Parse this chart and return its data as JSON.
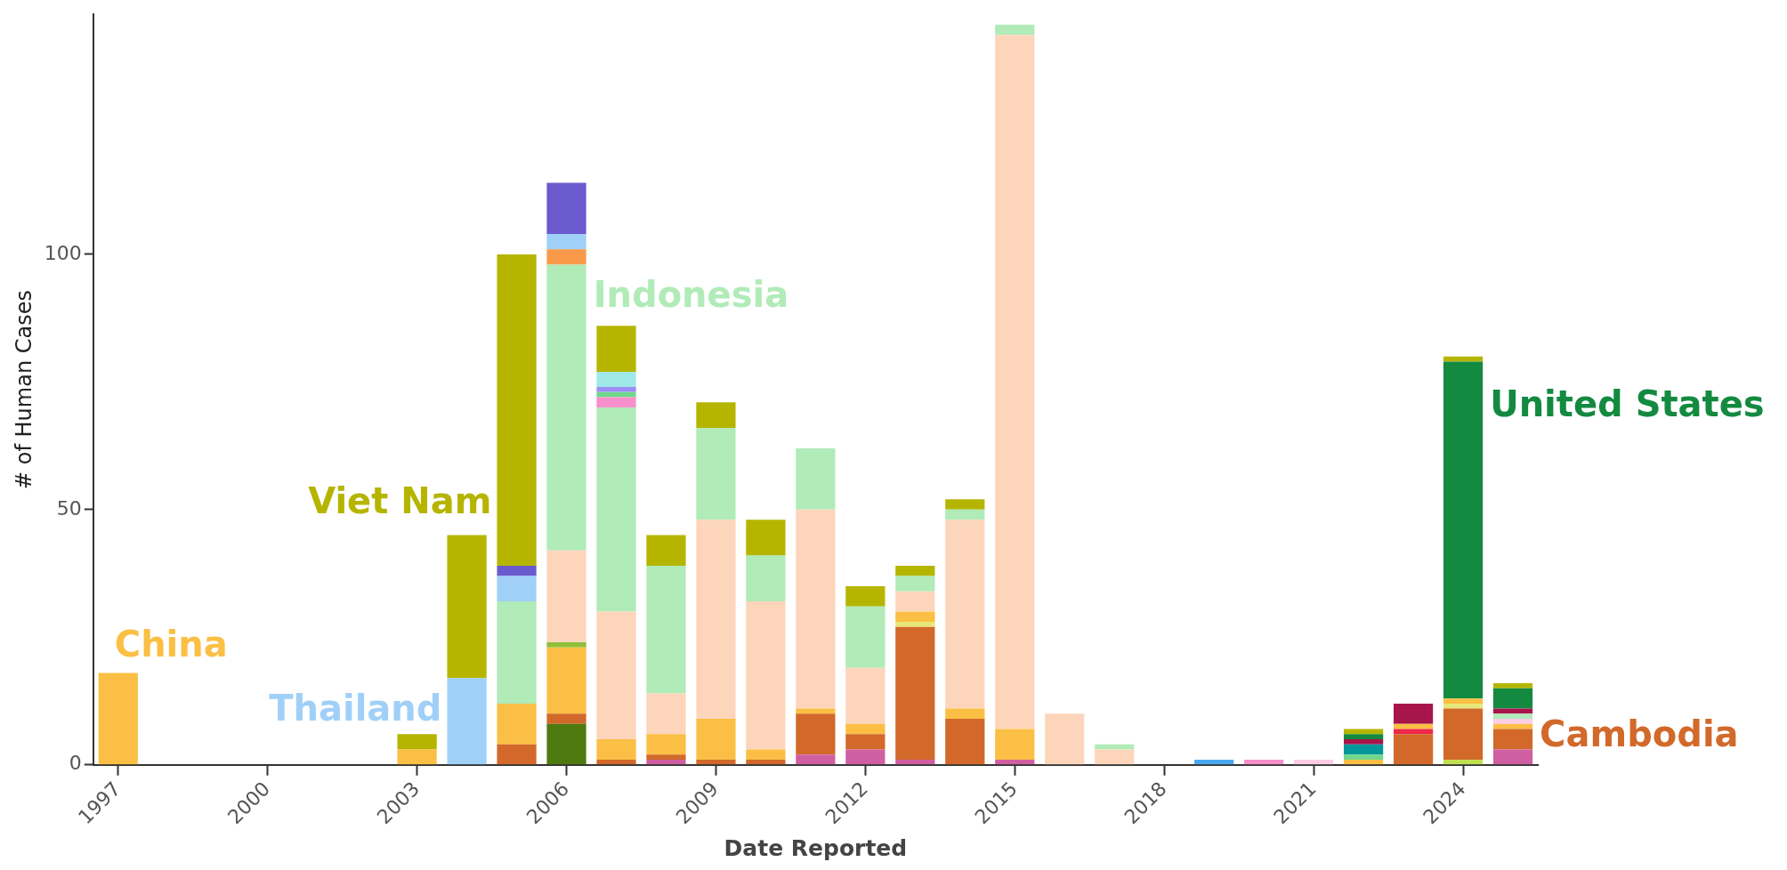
{
  "chart_data": {
    "type": "bar",
    "stacked": true,
    "xlabel": "Date Reported",
    "ylabel": "# of Human Cases",
    "categories": [
      "1997",
      null,
      null,
      "2000",
      null,
      null,
      "2003",
      null,
      null,
      "2006",
      null,
      null,
      "2009",
      null,
      null,
      "2012",
      null,
      null,
      "2015",
      null,
      null,
      "2018",
      null,
      null,
      "2021",
      null,
      null,
      "2024",
      null
    ],
    "ylim": [
      0,
      147
    ],
    "yticks": [
      0,
      50,
      100
    ],
    "grid": false,
    "legend": false,
    "series": [
      {
        "color": "#4f7a10",
        "values": [
          null,
          null,
          null,
          null,
          null,
          null,
          null,
          null,
          null,
          8,
          null,
          null,
          null,
          null,
          null,
          null,
          null,
          null,
          null,
          null,
          null,
          null,
          null,
          null,
          null,
          null,
          null,
          null,
          null
        ]
      },
      {
        "color": "#c0e050",
        "values": [
          null,
          null,
          null,
          null,
          null,
          null,
          null,
          null,
          null,
          null,
          null,
          null,
          null,
          null,
          null,
          null,
          null,
          null,
          null,
          null,
          null,
          null,
          null,
          null,
          null,
          null,
          null,
          1,
          null
        ]
      },
      {
        "color": "#d05fa2",
        "values": [
          null,
          null,
          null,
          null,
          null,
          null,
          null,
          null,
          null,
          null,
          null,
          1,
          null,
          null,
          2,
          3,
          1,
          null,
          1,
          null,
          null,
          null,
          null,
          null,
          null,
          null,
          null,
          null,
          3
        ]
      },
      {
        "name": "Cambodia",
        "color": "#d2692a",
        "values": [
          null,
          null,
          null,
          null,
          null,
          null,
          null,
          null,
          4,
          2,
          1,
          1,
          1,
          1,
          8,
          3,
          26,
          9,
          null,
          null,
          null,
          null,
          null,
          null,
          null,
          null,
          6,
          10,
          4
        ]
      },
      {
        "color": "#f0284a",
        "values": [
          null,
          null,
          null,
          null,
          null,
          null,
          null,
          null,
          null,
          null,
          null,
          null,
          null,
          null,
          null,
          null,
          null,
          null,
          null,
          null,
          null,
          null,
          null,
          null,
          null,
          null,
          1,
          null,
          null
        ]
      },
      {
        "color": "#e8e87a",
        "values": [
          null,
          null,
          null,
          null,
          null,
          null,
          null,
          null,
          null,
          null,
          null,
          null,
          null,
          null,
          null,
          null,
          1,
          null,
          null,
          null,
          null,
          null,
          null,
          null,
          null,
          null,
          null,
          1,
          null
        ]
      },
      {
        "name": "China",
        "color": "#fbbf45",
        "values": [
          18,
          null,
          null,
          null,
          null,
          null,
          3,
          null,
          8,
          13,
          4,
          4,
          8,
          2,
          1,
          2,
          2,
          2,
          6,
          null,
          null,
          null,
          null,
          null,
          null,
          1,
          1,
          1,
          1
        ]
      },
      {
        "color": "#8fbf3a",
        "values": [
          null,
          null,
          null,
          null,
          null,
          null,
          null,
          null,
          null,
          1,
          null,
          null,
          null,
          null,
          null,
          null,
          null,
          null,
          null,
          null,
          null,
          null,
          null,
          null,
          null,
          null,
          null,
          null,
          null
        ]
      },
      {
        "color": "#fdcce5",
        "values": [
          null,
          null,
          null,
          null,
          null,
          null,
          null,
          null,
          null,
          null,
          null,
          null,
          null,
          null,
          null,
          null,
          null,
          null,
          null,
          null,
          null,
          null,
          null,
          null,
          1,
          null,
          null,
          null,
          1
        ]
      },
      {
        "color": "#fdd5bb",
        "values": [
          null,
          null,
          null,
          null,
          null,
          null,
          null,
          null,
          null,
          18,
          25,
          8,
          39,
          29,
          39,
          11,
          4,
          37,
          136,
          10,
          3,
          null,
          null,
          null,
          null,
          null,
          null,
          null,
          null
        ]
      },
      {
        "name": "Indonesia",
        "color": "#b0ebb8",
        "values": [
          null,
          null,
          null,
          null,
          null,
          null,
          null,
          null,
          20,
          56,
          40,
          25,
          18,
          9,
          12,
          12,
          3,
          2,
          2,
          null,
          1,
          null,
          null,
          null,
          null,
          null,
          null,
          null,
          1
        ]
      },
      {
        "color": "#f78fcc",
        "values": [
          null,
          null,
          null,
          null,
          null,
          null,
          null,
          null,
          null,
          null,
          2,
          null,
          null,
          null,
          null,
          null,
          null,
          null,
          null,
          null,
          null,
          null,
          null,
          1,
          null,
          null,
          null,
          null,
          null
        ]
      },
      {
        "color": "#6fd88a",
        "values": [
          null,
          null,
          null,
          null,
          null,
          null,
          null,
          null,
          null,
          null,
          1,
          null,
          null,
          null,
          null,
          null,
          null,
          null,
          null,
          null,
          null,
          null,
          null,
          null,
          null,
          1,
          null,
          null,
          null
        ]
      },
      {
        "color": "#9b8ff5",
        "values": [
          null,
          null,
          null,
          null,
          null,
          null,
          null,
          null,
          null,
          null,
          1,
          null,
          null,
          null,
          null,
          null,
          null,
          null,
          null,
          null,
          null,
          null,
          null,
          null,
          null,
          null,
          null,
          null,
          null
        ]
      },
      {
        "color": "#9ee8e8",
        "values": [
          null,
          null,
          null,
          null,
          null,
          null,
          null,
          null,
          null,
          null,
          3,
          null,
          null,
          null,
          null,
          null,
          null,
          null,
          null,
          null,
          null,
          null,
          null,
          null,
          null,
          null,
          null,
          null,
          null
        ]
      },
      {
        "color": "#00979a",
        "values": [
          null,
          null,
          null,
          null,
          null,
          null,
          null,
          null,
          null,
          null,
          null,
          null,
          null,
          null,
          null,
          null,
          null,
          null,
          null,
          null,
          null,
          null,
          null,
          null,
          null,
          2,
          null,
          null,
          null
        ]
      },
      {
        "color": "#a8154a",
        "values": [
          null,
          null,
          null,
          null,
          null,
          null,
          null,
          null,
          null,
          null,
          null,
          null,
          null,
          null,
          null,
          null,
          null,
          null,
          null,
          null,
          null,
          null,
          null,
          null,
          null,
          1,
          4,
          null,
          1
        ]
      },
      {
        "name": "United States",
        "color": "#138a40",
        "values": [
          null,
          null,
          null,
          null,
          null,
          null,
          null,
          null,
          null,
          null,
          null,
          null,
          null,
          null,
          null,
          null,
          null,
          null,
          null,
          null,
          null,
          null,
          null,
          null,
          null,
          1,
          null,
          66,
          4
        ]
      },
      {
        "color": "#f99a4a",
        "values": [
          null,
          null,
          null,
          null,
          null,
          null,
          null,
          null,
          null,
          3,
          null,
          null,
          null,
          null,
          null,
          null,
          null,
          null,
          null,
          null,
          null,
          null,
          null,
          null,
          null,
          null,
          null,
          null,
          null
        ]
      },
      {
        "name": "Thailand",
        "color": "#a0d0f8",
        "values": [
          null,
          null,
          null,
          null,
          null,
          null,
          null,
          17,
          5,
          3,
          null,
          null,
          null,
          null,
          null,
          null,
          null,
          null,
          null,
          null,
          null,
          null,
          null,
          null,
          null,
          null,
          null,
          null,
          null
        ]
      },
      {
        "color": "#4aa8f0",
        "values": [
          null,
          null,
          null,
          null,
          null,
          null,
          null,
          null,
          null,
          null,
          null,
          null,
          null,
          null,
          null,
          null,
          null,
          null,
          null,
          null,
          null,
          null,
          1,
          null,
          null,
          null,
          null,
          null,
          null
        ]
      },
      {
        "color": "#6a5acd",
        "values": [
          null,
          null,
          null,
          null,
          null,
          null,
          null,
          null,
          2,
          10,
          null,
          null,
          null,
          null,
          null,
          null,
          null,
          null,
          null,
          null,
          null,
          null,
          null,
          null,
          null,
          null,
          null,
          null,
          null
        ]
      },
      {
        "name": "Viet Nam",
        "color": "#b5b500",
        "values": [
          null,
          null,
          null,
          null,
          null,
          null,
          3,
          28,
          61,
          null,
          9,
          6,
          5,
          7,
          null,
          4,
          2,
          2,
          null,
          null,
          null,
          null,
          null,
          null,
          null,
          1,
          null,
          1,
          1
        ]
      }
    ]
  }
}
